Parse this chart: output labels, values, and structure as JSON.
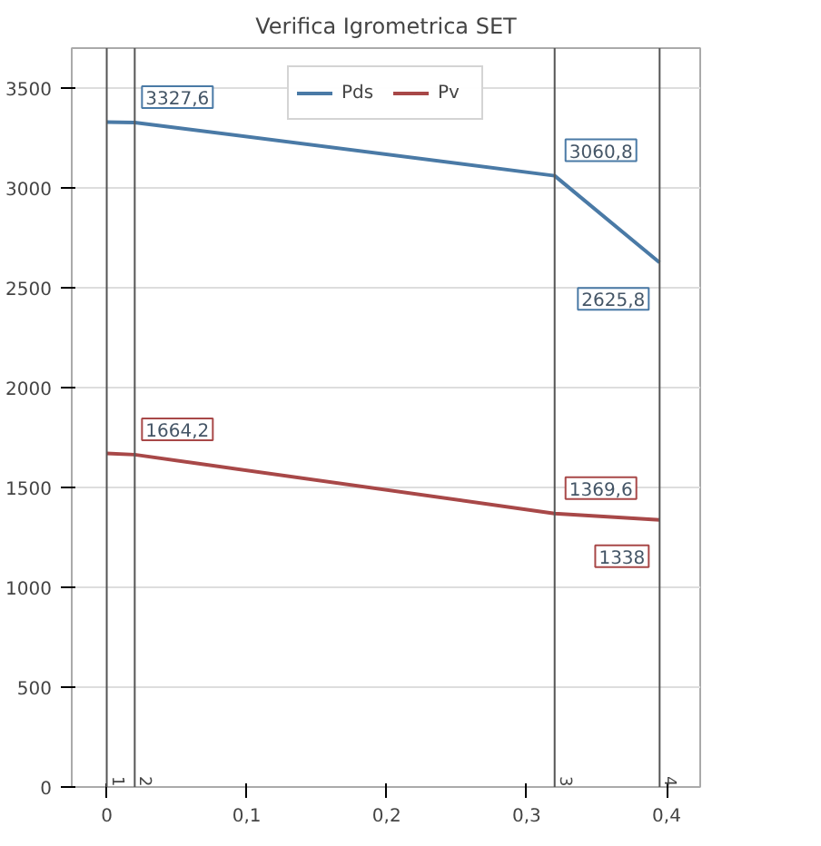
{
  "chart_data": {
    "type": "line",
    "title": "Verifica Igrometrica SET",
    "x": [
      0,
      0.02,
      0.32,
      0.395
    ],
    "series": [
      {
        "name": "Pds",
        "color": "#4a7aa6",
        "values": [
          3330,
          3327.6,
          3060.8,
          2625.8
        ],
        "value_labels": [
          null,
          "3327,6",
          "3060,8",
          "2625,8"
        ]
      },
      {
        "name": "Pv",
        "color": "#a84848",
        "values": [
          1670,
          1664.2,
          1369.6,
          1338
        ],
        "value_labels": [
          null,
          "1664,2",
          "1369,6",
          "1338"
        ]
      }
    ],
    "xlim": [
      -0.025,
      0.424
    ],
    "ylim": [
      0,
      3700
    ],
    "xticks": [
      0,
      {
        "value": 0.1,
        "label": "0,1"
      },
      {
        "value": 0.2,
        "label": "0,2"
      },
      {
        "value": 0.3,
        "label": "0,3"
      },
      {
        "value": 0.4,
        "label": "0,4"
      }
    ],
    "yticks": [
      0,
      500,
      1000,
      1500,
      2000,
      2500,
      3000,
      3500
    ],
    "ref_lines": [
      {
        "axis": "x",
        "value": 0,
        "color": "#555555"
      },
      {
        "axis": "x",
        "value": 0.02,
        "color": "#555555"
      },
      {
        "axis": "x",
        "value": 0.32,
        "color": "#555555"
      },
      {
        "axis": "x",
        "value": 0.395,
        "color": "#555555"
      }
    ],
    "annotations": [
      {
        "text": "1",
        "x": 0,
        "y": 0
      },
      {
        "text": "2",
        "x": 0.02,
        "y": 0
      },
      {
        "text": "3",
        "x": 0.32,
        "y": 0
      },
      {
        "text": "4",
        "x": 0.395,
        "y": 0
      }
    ],
    "grid": "y",
    "legend": "top",
    "line_style": "solid"
  }
}
